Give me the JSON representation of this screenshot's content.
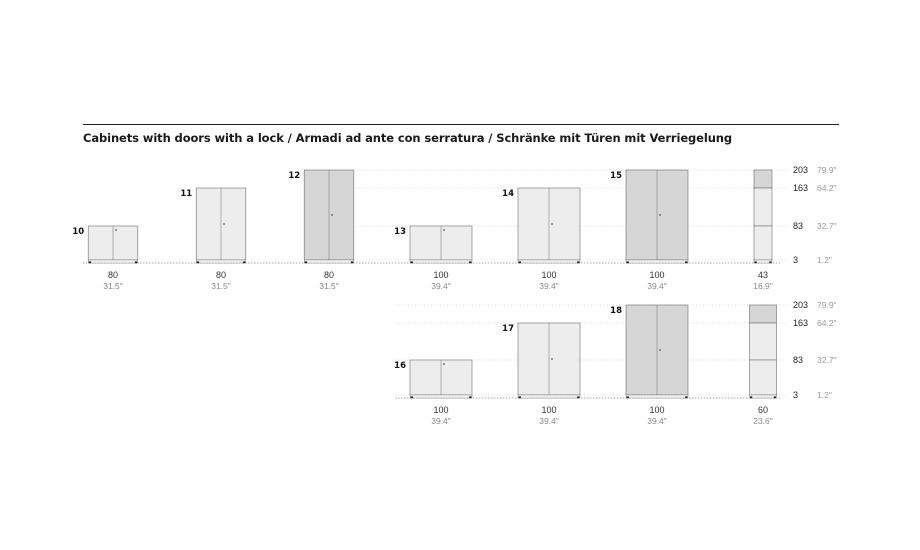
{
  "title": "Cabinets with doors with a lock / Armadi ad ante con serratura / Schränke mit Türen mit Verriegelung",
  "colors": {
    "light_panel": "#ededed",
    "grey_panel": "#d6d6d6",
    "outline": "#6e6e6e",
    "dotted_line": "#bcbcbc",
    "base_line": "#8a8a8a"
  },
  "scale_rows": [
    {
      "heights": [
        {
          "cm": "203",
          "in": "79.9\""
        },
        {
          "cm": "163",
          "in": "64.2\""
        },
        {
          "cm": "83",
          "in": "32.7\""
        },
        {
          "cm": "3",
          "in": "1.2\""
        }
      ]
    },
    {
      "heights": [
        {
          "cm": "203",
          "in": "79.9\""
        },
        {
          "cm": "163",
          "in": "64.2\""
        },
        {
          "cm": "83",
          "in": "32.7\""
        },
        {
          "cm": "3",
          "in": "1.2\""
        }
      ]
    }
  ],
  "cabinets": [
    {
      "number": "10",
      "width_cm": "80",
      "width_in": "31.5\"",
      "height": 83,
      "width": 80,
      "row": 0,
      "tone": "light"
    },
    {
      "number": "11",
      "width_cm": "80",
      "width_in": "31.5\"",
      "height": 163,
      "width": 80,
      "row": 0,
      "tone": "light"
    },
    {
      "number": "12",
      "width_cm": "80",
      "width_in": "31.5\"",
      "height": 203,
      "width": 80,
      "row": 0,
      "tone": "grey"
    },
    {
      "number": "13",
      "width_cm": "100",
      "width_in": "39.4\"",
      "height": 83,
      "width": 100,
      "row": 0,
      "tone": "light"
    },
    {
      "number": "14",
      "width_cm": "100",
      "width_in": "39.4\"",
      "height": 163,
      "width": 100,
      "row": 0,
      "tone": "light"
    },
    {
      "number": "15",
      "width_cm": "100",
      "width_in": "39.4\"",
      "height": 203,
      "width": 100,
      "row": 0,
      "tone": "grey"
    },
    {
      "number": "16",
      "width_cm": "100",
      "width_in": "39.4\"",
      "height": 83,
      "width": 100,
      "row": 1,
      "tone": "light"
    },
    {
      "number": "17",
      "width_cm": "100",
      "width_in": "39.4\"",
      "height": 163,
      "width": 100,
      "row": 1,
      "tone": "light"
    },
    {
      "number": "18",
      "width_cm": "100",
      "width_in": "39.4\"",
      "height": 203,
      "width": 100,
      "row": 1,
      "tone": "grey"
    }
  ],
  "side_views": [
    {
      "width_cm": "43",
      "width_in": "16.9\"",
      "row": 0
    },
    {
      "width_cm": "60",
      "width_in": "23.6\"",
      "row": 1
    }
  ]
}
